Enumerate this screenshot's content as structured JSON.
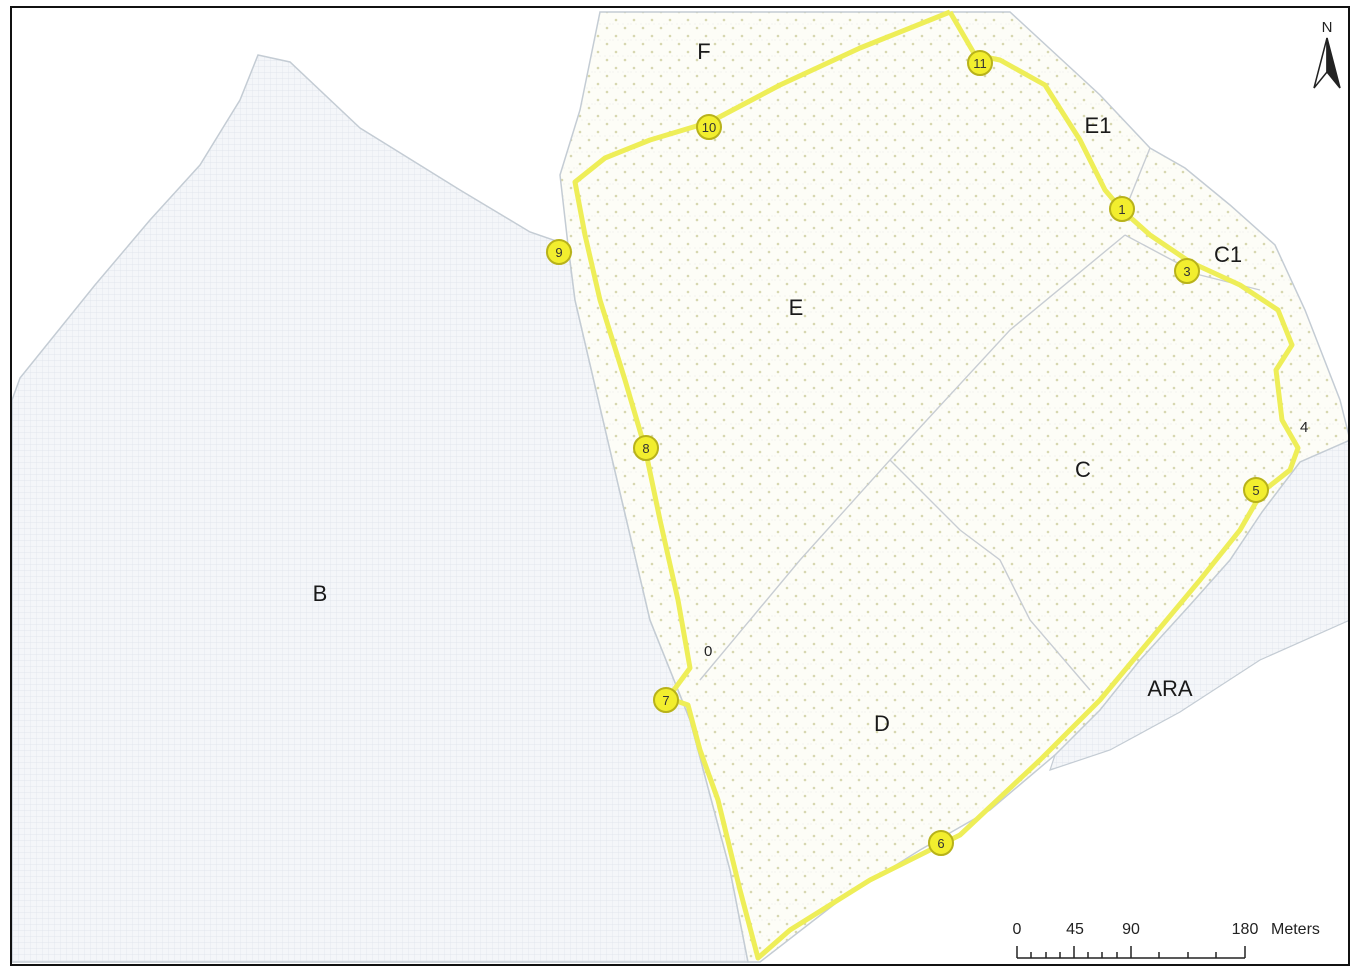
{
  "map": {
    "zones": [
      {
        "id": "B",
        "label": "B"
      },
      {
        "id": "F",
        "label": "F"
      },
      {
        "id": "E",
        "label": "E"
      },
      {
        "id": "E1",
        "label": "E1"
      },
      {
        "id": "C1",
        "label": "C1"
      },
      {
        "id": "C",
        "label": "C"
      },
      {
        "id": "D",
        "label": "D"
      },
      {
        "id": "ARA",
        "label": "ARA"
      }
    ],
    "waypoints": [
      "1",
      "3",
      "5",
      "6",
      "7",
      "8",
      "9",
      "10",
      "11"
    ],
    "unmarked_points": [
      "0",
      "4"
    ],
    "north_arrow": {
      "letter": "N",
      "icon": "north-arrow-icon"
    },
    "scale_bar": {
      "ticks": [
        "0",
        "45",
        "90",
        "180"
      ],
      "unit": "Meters"
    },
    "colors": {
      "route": "#eeee58",
      "marker_fill": "#f2ee2e",
      "marker_stroke": "#b8b21a",
      "grid_area": "#f3f6f9",
      "dotted_area": "#fdfdf6",
      "boundary": "#c4ccd4"
    }
  }
}
